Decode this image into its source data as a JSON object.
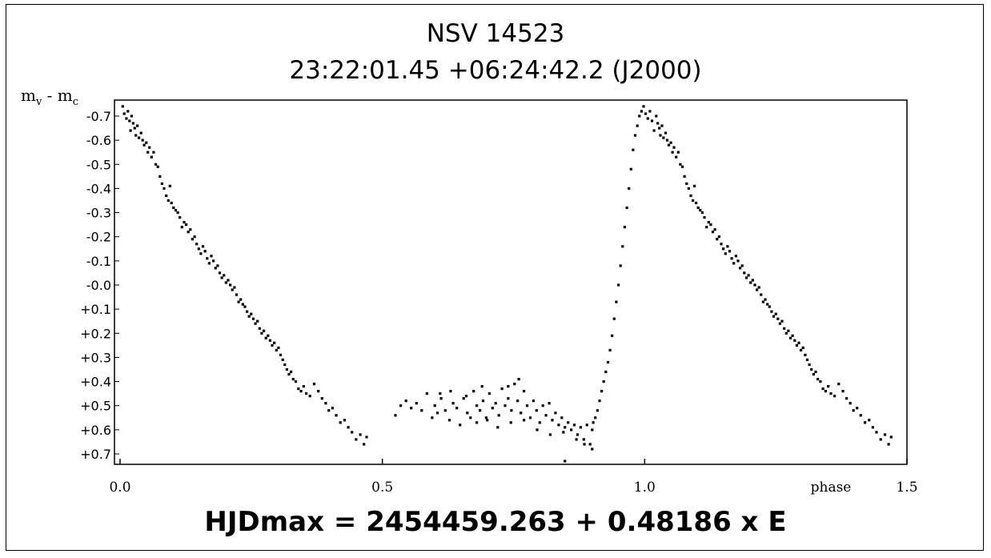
{
  "chart_data": {
    "type": "scatter",
    "title": "NSV 14523",
    "subtitle": "23:22:01.45 +06:24:42.2 (J2000)",
    "ylabel": "m_v - m_c",
    "ylabel_main": "m",
    "ylabel_sub1": "v",
    "ylabel_mid": " - m",
    "ylabel_sub2": "c",
    "xlabel": "phase",
    "footer": "HJDmax = 2454459.263 + 0.48186 x E",
    "xlim": [
      0.0,
      1.5
    ],
    "ylim": [
      -0.75,
      0.75
    ],
    "y_inverted": true,
    "x_ticks": [
      {
        "value": 0.0,
        "label": "0.0"
      },
      {
        "value": 0.5,
        "label": "0.5"
      },
      {
        "value": 1.0,
        "label": "1.0"
      },
      {
        "value": 1.5,
        "label": "1.5"
      }
    ],
    "y_ticks": [
      {
        "value": -0.7,
        "label": "-0.7"
      },
      {
        "value": -0.6,
        "label": "-0.6"
      },
      {
        "value": -0.5,
        "label": "-0.5"
      },
      {
        "value": -0.4,
        "label": "-0.4"
      },
      {
        "value": -0.3,
        "label": "-0.3"
      },
      {
        "value": -0.2,
        "label": "-0.2"
      },
      {
        "value": -0.1,
        "label": "-0.1"
      },
      {
        "value": 0.0,
        "label": "-0.0"
      },
      {
        "value": 0.1,
        "label": "+0.1"
      },
      {
        "value": 0.2,
        "label": "+0.2"
      },
      {
        "value": 0.3,
        "label": "+0.3"
      },
      {
        "value": 0.4,
        "label": "+0.4"
      },
      {
        "value": 0.5,
        "label": "+0.5"
      },
      {
        "value": 0.6,
        "label": "+0.6"
      },
      {
        "value": 0.7,
        "label": "+0.7"
      }
    ],
    "grid": false,
    "marker_color": "#000000",
    "points": [
      [
        0.005,
        -0.74
      ],
      [
        0.008,
        -0.71
      ],
      [
        0.012,
        -0.69
      ],
      [
        0.015,
        -0.72
      ],
      [
        0.018,
        -0.68
      ],
      [
        0.02,
        -0.64
      ],
      [
        0.022,
        -0.7
      ],
      [
        0.025,
        -0.67
      ],
      [
        0.028,
        -0.65
      ],
      [
        0.03,
        -0.62
      ],
      [
        0.033,
        -0.66
      ],
      [
        0.036,
        -0.61
      ],
      [
        0.04,
        -0.63
      ],
      [
        0.043,
        -0.6
      ],
      [
        0.046,
        -0.58
      ],
      [
        0.05,
        -0.59
      ],
      [
        0.053,
        -0.55
      ],
      [
        0.056,
        -0.57
      ],
      [
        0.06,
        -0.53
      ],
      [
        0.064,
        -0.55
      ],
      [
        0.068,
        -0.5
      ],
      [
        0.072,
        -0.49
      ],
      [
        0.076,
        -0.45
      ],
      [
        0.08,
        -0.42
      ],
      [
        0.084,
        -0.4
      ],
      [
        0.088,
        -0.37
      ],
      [
        0.092,
        -0.35
      ],
      [
        0.095,
        -0.41
      ],
      [
        0.098,
        -0.34
      ],
      [
        0.102,
        -0.32
      ],
      [
        0.106,
        -0.31
      ],
      [
        0.11,
        -0.3
      ],
      [
        0.114,
        -0.28
      ],
      [
        0.118,
        -0.24
      ],
      [
        0.122,
        -0.26
      ],
      [
        0.126,
        -0.25
      ],
      [
        0.13,
        -0.22
      ],
      [
        0.134,
        -0.23
      ],
      [
        0.138,
        -0.19
      ],
      [
        0.142,
        -0.2
      ],
      [
        0.146,
        -0.17
      ],
      [
        0.15,
        -0.15
      ],
      [
        0.154,
        -0.13
      ],
      [
        0.158,
        -0.16
      ],
      [
        0.162,
        -0.14
      ],
      [
        0.166,
        -0.11
      ],
      [
        0.17,
        -0.09
      ],
      [
        0.174,
        -0.12
      ],
      [
        0.178,
        -0.1
      ],
      [
        0.182,
        -0.07
      ],
      [
        0.186,
        -0.08
      ],
      [
        0.19,
        -0.05
      ],
      [
        0.194,
        -0.03
      ],
      [
        0.198,
        -0.04
      ],
      [
        0.202,
        -0.01
      ],
      [
        0.206,
        -0.02
      ],
      [
        0.21,
        0.0
      ],
      [
        0.214,
        0.02
      ],
      [
        0.218,
        0.01
      ],
      [
        0.222,
        0.04
      ],
      [
        0.226,
        0.07
      ],
      [
        0.23,
        0.06
      ],
      [
        0.234,
        0.08
      ],
      [
        0.238,
        0.09
      ],
      [
        0.242,
        0.11
      ],
      [
        0.246,
        0.13
      ],
      [
        0.25,
        0.12
      ],
      [
        0.254,
        0.14
      ],
      [
        0.258,
        0.16
      ],
      [
        0.262,
        0.15
      ],
      [
        0.266,
        0.18
      ],
      [
        0.27,
        0.2
      ],
      [
        0.274,
        0.19
      ],
      [
        0.278,
        0.22
      ],
      [
        0.282,
        0.21
      ],
      [
        0.286,
        0.23
      ],
      [
        0.29,
        0.25
      ],
      [
        0.294,
        0.24
      ],
      [
        0.298,
        0.27
      ],
      [
        0.302,
        0.26
      ],
      [
        0.306,
        0.29
      ],
      [
        0.31,
        0.31
      ],
      [
        0.314,
        0.33
      ],
      [
        0.318,
        0.35
      ],
      [
        0.322,
        0.37
      ],
      [
        0.326,
        0.36
      ],
      [
        0.33,
        0.39
      ],
      [
        0.335,
        0.4
      ],
      [
        0.34,
        0.43
      ],
      [
        0.345,
        0.44
      ],
      [
        0.35,
        0.42
      ],
      [
        0.355,
        0.45
      ],
      [
        0.362,
        0.46
      ],
      [
        0.37,
        0.41
      ],
      [
        0.378,
        0.44
      ],
      [
        0.385,
        0.47
      ],
      [
        0.392,
        0.49
      ],
      [
        0.398,
        0.52
      ],
      [
        0.405,
        0.51
      ],
      [
        0.412,
        0.54
      ],
      [
        0.42,
        0.57
      ],
      [
        0.428,
        0.56
      ],
      [
        0.435,
        0.59
      ],
      [
        0.442,
        0.61
      ],
      [
        0.45,
        0.64
      ],
      [
        0.458,
        0.62
      ],
      [
        0.465,
        0.66
      ],
      [
        0.47,
        0.63
      ],
      [
        0.525,
        0.54
      ],
      [
        0.535,
        0.5
      ],
      [
        0.545,
        0.48
      ],
      [
        0.555,
        0.51
      ],
      [
        0.565,
        0.49
      ],
      [
        0.575,
        0.52
      ],
      [
        0.585,
        0.45
      ],
      [
        0.595,
        0.55
      ],
      [
        0.6,
        0.5
      ],
      [
        0.605,
        0.53
      ],
      [
        0.612,
        0.47
      ],
      [
        0.62,
        0.52
      ],
      [
        0.628,
        0.56
      ],
      [
        0.635,
        0.49
      ],
      [
        0.642,
        0.51
      ],
      [
        0.648,
        0.58
      ],
      [
        0.655,
        0.47
      ],
      [
        0.662,
        0.53
      ],
      [
        0.668,
        0.55
      ],
      [
        0.674,
        0.44
      ],
      [
        0.68,
        0.5
      ],
      [
        0.686,
        0.52
      ],
      [
        0.692,
        0.48
      ],
      [
        0.698,
        0.55
      ],
      [
        0.704,
        0.45
      ],
      [
        0.71,
        0.51
      ],
      [
        0.716,
        0.49
      ],
      [
        0.722,
        0.54
      ],
      [
        0.728,
        0.43
      ],
      [
        0.734,
        0.5
      ],
      [
        0.74,
        0.47
      ],
      [
        0.746,
        0.52
      ],
      [
        0.752,
        0.41
      ],
      [
        0.758,
        0.48
      ],
      [
        0.764,
        0.53
      ],
      [
        0.77,
        0.44
      ],
      [
        0.776,
        0.5
      ],
      [
        0.782,
        0.55
      ],
      [
        0.788,
        0.48
      ],
      [
        0.794,
        0.52
      ],
      [
        0.8,
        0.57
      ],
      [
        0.806,
        0.5
      ],
      [
        0.812,
        0.54
      ],
      [
        0.818,
        0.49
      ],
      [
        0.824,
        0.56
      ],
      [
        0.83,
        0.53
      ],
      [
        0.836,
        0.58
      ],
      [
        0.842,
        0.55
      ],
      [
        0.848,
        0.59
      ],
      [
        0.854,
        0.57
      ],
      [
        0.86,
        0.6
      ],
      [
        0.866,
        0.58
      ],
      [
        0.872,
        0.62
      ],
      [
        0.878,
        0.59
      ],
      [
        0.884,
        0.64
      ],
      [
        0.89,
        0.58
      ],
      [
        0.896,
        0.66
      ],
      [
        0.9,
        0.6
      ],
      [
        0.68,
        0.57
      ],
      [
        0.7,
        0.56
      ],
      [
        0.72,
        0.59
      ],
      [
        0.745,
        0.57
      ],
      [
        0.77,
        0.56
      ],
      [
        0.795,
        0.6
      ],
      [
        0.82,
        0.62
      ],
      [
        0.845,
        0.61
      ],
      [
        0.76,
        0.39
      ],
      [
        0.74,
        0.42
      ],
      [
        0.69,
        0.42
      ],
      [
        0.66,
        0.46
      ],
      [
        0.63,
        0.44
      ],
      [
        0.61,
        0.45
      ],
      [
        0.902,
        0.57
      ],
      [
        0.906,
        0.55
      ],
      [
        0.91,
        0.52
      ],
      [
        0.914,
        0.48
      ],
      [
        0.918,
        0.44
      ],
      [
        0.922,
        0.4
      ],
      [
        0.926,
        0.36
      ],
      [
        0.93,
        0.32
      ],
      [
        0.934,
        0.27
      ],
      [
        0.938,
        0.21
      ],
      [
        0.942,
        0.14
      ],
      [
        0.946,
        0.07
      ],
      [
        0.95,
        0.0
      ],
      [
        0.954,
        -0.08
      ],
      [
        0.958,
        -0.16
      ],
      [
        0.962,
        -0.24
      ],
      [
        0.966,
        -0.32
      ],
      [
        0.97,
        -0.4
      ],
      [
        0.974,
        -0.48
      ],
      [
        0.978,
        -0.56
      ],
      [
        0.982,
        -0.62
      ],
      [
        0.986,
        -0.66
      ],
      [
        0.99,
        -0.7
      ],
      [
        0.994,
        -0.72
      ],
      [
        0.998,
        -0.74
      ],
      [
        1.002,
        -0.71
      ],
      [
        1.006,
        -0.69
      ],
      [
        1.01,
        -0.72
      ],
      [
        1.014,
        -0.68
      ],
      [
        1.018,
        -0.64
      ],
      [
        1.022,
        -0.7
      ],
      [
        1.025,
        -0.67
      ],
      [
        1.028,
        -0.65
      ],
      [
        1.03,
        -0.62
      ],
      [
        1.033,
        -0.66
      ],
      [
        1.036,
        -0.61
      ],
      [
        1.04,
        -0.63
      ],
      [
        1.043,
        -0.6
      ],
      [
        1.046,
        -0.58
      ],
      [
        1.05,
        -0.59
      ],
      [
        1.053,
        -0.55
      ],
      [
        1.056,
        -0.57
      ],
      [
        1.06,
        -0.53
      ],
      [
        1.064,
        -0.55
      ],
      [
        1.068,
        -0.5
      ],
      [
        1.072,
        -0.49
      ],
      [
        1.076,
        -0.45
      ],
      [
        1.08,
        -0.42
      ],
      [
        1.084,
        -0.4
      ],
      [
        1.088,
        -0.37
      ],
      [
        1.092,
        -0.35
      ],
      [
        1.095,
        -0.41
      ],
      [
        1.098,
        -0.34
      ],
      [
        1.102,
        -0.32
      ],
      [
        1.106,
        -0.31
      ],
      [
        1.11,
        -0.3
      ],
      [
        1.114,
        -0.28
      ],
      [
        1.118,
        -0.24
      ],
      [
        1.122,
        -0.26
      ],
      [
        1.126,
        -0.25
      ],
      [
        1.13,
        -0.22
      ],
      [
        1.134,
        -0.23
      ],
      [
        1.138,
        -0.19
      ],
      [
        1.142,
        -0.2
      ],
      [
        1.146,
        -0.17
      ],
      [
        1.15,
        -0.15
      ],
      [
        1.154,
        -0.13
      ],
      [
        1.158,
        -0.16
      ],
      [
        1.162,
        -0.14
      ],
      [
        1.166,
        -0.11
      ],
      [
        1.17,
        -0.09
      ],
      [
        1.174,
        -0.12
      ],
      [
        1.178,
        -0.1
      ],
      [
        1.182,
        -0.07
      ],
      [
        1.186,
        -0.08
      ],
      [
        1.19,
        -0.05
      ],
      [
        1.194,
        -0.03
      ],
      [
        1.198,
        -0.04
      ],
      [
        1.202,
        -0.01
      ],
      [
        1.206,
        -0.02
      ],
      [
        1.21,
        0.0
      ],
      [
        1.214,
        0.02
      ],
      [
        1.218,
        0.01
      ],
      [
        1.222,
        0.04
      ],
      [
        1.226,
        0.07
      ],
      [
        1.23,
        0.06
      ],
      [
        1.234,
        0.08
      ],
      [
        1.238,
        0.09
      ],
      [
        1.242,
        0.11
      ],
      [
        1.246,
        0.13
      ],
      [
        1.25,
        0.12
      ],
      [
        1.254,
        0.14
      ],
      [
        1.258,
        0.16
      ],
      [
        1.262,
        0.15
      ],
      [
        1.266,
        0.18
      ],
      [
        1.27,
        0.2
      ],
      [
        1.274,
        0.19
      ],
      [
        1.278,
        0.22
      ],
      [
        1.282,
        0.21
      ],
      [
        1.286,
        0.23
      ],
      [
        1.29,
        0.25
      ],
      [
        1.294,
        0.24
      ],
      [
        1.298,
        0.27
      ],
      [
        1.302,
        0.26
      ],
      [
        1.306,
        0.29
      ],
      [
        1.31,
        0.31
      ],
      [
        1.314,
        0.33
      ],
      [
        1.318,
        0.35
      ],
      [
        1.322,
        0.37
      ],
      [
        1.326,
        0.36
      ],
      [
        1.33,
        0.39
      ],
      [
        1.335,
        0.4
      ],
      [
        1.34,
        0.43
      ],
      [
        1.345,
        0.44
      ],
      [
        1.35,
        0.42
      ],
      [
        1.355,
        0.45
      ],
      [
        1.362,
        0.46
      ],
      [
        1.37,
        0.41
      ],
      [
        1.378,
        0.44
      ],
      [
        1.385,
        0.47
      ],
      [
        1.392,
        0.49
      ],
      [
        1.398,
        0.52
      ],
      [
        1.405,
        0.51
      ],
      [
        1.412,
        0.54
      ],
      [
        1.42,
        0.57
      ],
      [
        1.428,
        0.56
      ],
      [
        1.435,
        0.59
      ],
      [
        1.442,
        0.61
      ],
      [
        1.45,
        0.64
      ],
      [
        1.458,
        0.62
      ],
      [
        1.465,
        0.66
      ],
      [
        1.47,
        0.63
      ],
      [
        0.848,
        0.73
      ],
      [
        0.9,
        0.68
      ],
      [
        0.885,
        0.66
      ],
      [
        0.87,
        0.64
      ]
    ]
  }
}
